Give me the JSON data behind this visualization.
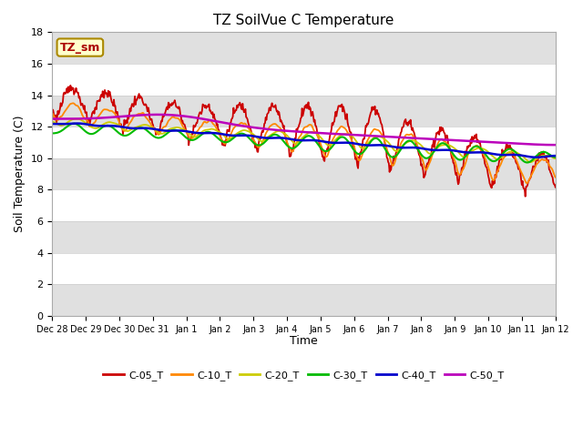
{
  "title": "TZ SoilVue C Temperature",
  "ylabel": "Soil Temperature (C)",
  "xlabel": "Time",
  "ylim": [
    0,
    18
  ],
  "series_labels": [
    "C-05_T",
    "C-10_T",
    "C-20_T",
    "C-30_T",
    "C-40_T",
    "C-50_T"
  ],
  "series_colors": [
    "#cc0000",
    "#ff8800",
    "#cccc00",
    "#00bb00",
    "#0000cc",
    "#bb00bb"
  ],
  "tz_label": "TZ_sm",
  "background_color": "#ffffff",
  "band_color": "#e0e0e0",
  "tick_labels": [
    "Dec 28",
    "Dec 29",
    "Dec 30",
    "Dec 31",
    "Jan 1",
    "Jan 2",
    "Jan 3",
    "Jan 4",
    "Jan 5",
    "Jan 6",
    "Jan 7",
    "Jan 8",
    "Jan 9",
    "Jan 10",
    "Jan 11",
    "Jan 12"
  ]
}
